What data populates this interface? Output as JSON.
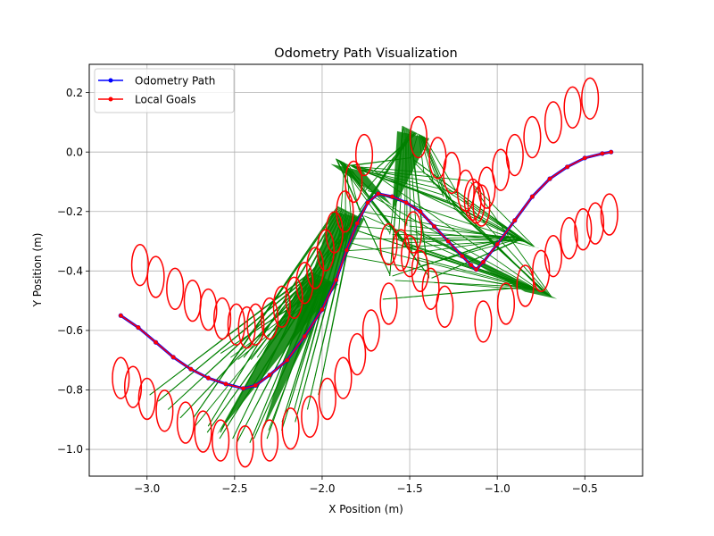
{
  "chart_data": {
    "type": "line",
    "title": "Odometry Path Visualization",
    "xlabel": "X Position (m)",
    "ylabel": "Y Position (m)",
    "xlim": [
      -3.33,
      -0.17
    ],
    "ylim": [
      -1.09,
      0.295
    ],
    "xticks": [
      -3.0,
      -2.5,
      -2.0,
      -1.5,
      -1.0,
      -0.5
    ],
    "xtick_labels": [
      "−3.0",
      "−2.5",
      "−2.0",
      "−1.5",
      "−1.0",
      "−0.5"
    ],
    "yticks": [
      0.2,
      0.0,
      -0.2,
      -0.4,
      -0.6,
      -0.8,
      -1.0
    ],
    "ytick_labels": [
      "0.2",
      "0.0",
      "−0.2",
      "−0.4",
      "−0.6",
      "−0.8",
      "−1.0"
    ],
    "grid": true,
    "legend_position": "upper-left",
    "series": [
      {
        "name": "Odometry Path",
        "color": "#0000ff",
        "points": [
          [
            -3.15,
            -0.55
          ],
          [
            -3.05,
            -0.59
          ],
          [
            -2.95,
            -0.64
          ],
          [
            -2.85,
            -0.69
          ],
          [
            -2.75,
            -0.73
          ],
          [
            -2.65,
            -0.76
          ],
          [
            -2.55,
            -0.78
          ],
          [
            -2.45,
            -0.795
          ],
          [
            -2.38,
            -0.785
          ],
          [
            -2.3,
            -0.75
          ],
          [
            -2.2,
            -0.7
          ],
          [
            -2.1,
            -0.62
          ],
          [
            -2.0,
            -0.53
          ],
          [
            -1.92,
            -0.43
          ],
          [
            -1.86,
            -0.33
          ],
          [
            -1.8,
            -0.24
          ],
          [
            -1.74,
            -0.17
          ],
          [
            -1.68,
            -0.14
          ],
          [
            -1.6,
            -0.15
          ],
          [
            -1.52,
            -0.17
          ],
          [
            -1.44,
            -0.2
          ],
          [
            -1.36,
            -0.25
          ],
          [
            -1.28,
            -0.3
          ],
          [
            -1.2,
            -0.35
          ],
          [
            -1.15,
            -0.38
          ],
          [
            -1.12,
            -0.395
          ],
          [
            -1.08,
            -0.37
          ],
          [
            -1.0,
            -0.31
          ],
          [
            -0.9,
            -0.23
          ],
          [
            -0.8,
            -0.15
          ],
          [
            -0.7,
            -0.09
          ],
          [
            -0.6,
            -0.05
          ],
          [
            -0.5,
            -0.02
          ],
          [
            -0.4,
            -0.005
          ],
          [
            -0.35,
            0.0
          ]
        ]
      },
      {
        "name": "Local Goals",
        "color": "#ff0000",
        "points": [
          [
            -3.15,
            -0.55
          ],
          [
            -3.05,
            -0.59
          ],
          [
            -2.95,
            -0.64
          ],
          [
            -2.85,
            -0.69
          ],
          [
            -2.75,
            -0.73
          ],
          [
            -2.65,
            -0.76
          ],
          [
            -2.55,
            -0.78
          ],
          [
            -2.45,
            -0.795
          ],
          [
            -2.38,
            -0.785
          ],
          [
            -2.3,
            -0.75
          ],
          [
            -2.2,
            -0.7
          ],
          [
            -2.1,
            -0.62
          ],
          [
            -2.0,
            -0.53
          ],
          [
            -1.92,
            -0.43
          ],
          [
            -1.86,
            -0.33
          ],
          [
            -1.8,
            -0.24
          ],
          [
            -1.74,
            -0.17
          ],
          [
            -1.68,
            -0.14
          ],
          [
            -1.6,
            -0.15
          ],
          [
            -1.52,
            -0.17
          ],
          [
            -1.44,
            -0.2
          ],
          [
            -1.36,
            -0.25
          ],
          [
            -1.28,
            -0.3
          ],
          [
            -1.2,
            -0.35
          ],
          [
            -1.15,
            -0.38
          ],
          [
            -1.12,
            -0.395
          ],
          [
            -1.08,
            -0.37
          ],
          [
            -1.0,
            -0.31
          ],
          [
            -0.9,
            -0.23
          ],
          [
            -0.8,
            -0.15
          ],
          [
            -0.7,
            -0.09
          ],
          [
            -0.6,
            -0.05
          ],
          [
            -0.5,
            -0.02
          ],
          [
            -0.4,
            -0.005
          ],
          [
            -0.35,
            0.0
          ]
        ]
      }
    ],
    "ellipses": {
      "color": "#ff0000",
      "center_groups": [
        [
          [
            -3.15,
            -0.76
          ],
          [
            -3.08,
            -0.79
          ],
          [
            -3.0,
            -0.83
          ],
          [
            -2.9,
            -0.87
          ],
          [
            -2.78,
            -0.91
          ],
          [
            -2.68,
            -0.94
          ],
          [
            -2.58,
            -0.97
          ],
          [
            -2.44,
            -0.99
          ],
          [
            -2.3,
            -0.97
          ],
          [
            -2.18,
            -0.93
          ],
          [
            -2.07,
            -0.89
          ],
          [
            -1.97,
            -0.83
          ],
          [
            -1.88,
            -0.76
          ],
          [
            -1.8,
            -0.68
          ],
          [
            -1.72,
            -0.6
          ],
          [
            -1.62,
            -0.51
          ],
          [
            -1.62,
            -0.31
          ],
          [
            -1.55,
            -0.33
          ],
          [
            -1.5,
            -0.35
          ],
          [
            -1.48,
            -0.27
          ],
          [
            -1.44,
            -0.4
          ],
          [
            -1.38,
            -0.46
          ],
          [
            -1.3,
            -0.52
          ],
          [
            -1.08,
            -0.57
          ]
        ],
        [
          [
            -3.04,
            -0.38
          ],
          [
            -2.95,
            -0.42
          ],
          [
            -2.84,
            -0.46
          ],
          [
            -2.74,
            -0.5
          ],
          [
            -2.65,
            -0.53
          ],
          [
            -2.57,
            -0.56
          ],
          [
            -2.49,
            -0.58
          ],
          [
            -2.43,
            -0.59
          ],
          [
            -2.38,
            -0.58
          ],
          [
            -2.3,
            -0.56
          ],
          [
            -2.23,
            -0.52
          ],
          [
            -2.16,
            -0.49
          ],
          [
            -2.1,
            -0.44
          ],
          [
            -2.04,
            -0.39
          ],
          [
            -1.98,
            -0.33
          ],
          [
            -1.93,
            -0.27
          ],
          [
            -1.87,
            -0.2
          ],
          [
            -1.82,
            -0.1
          ],
          [
            -1.76,
            -0.01
          ],
          [
            -1.45,
            0.05
          ],
          [
            -1.34,
            -0.02
          ],
          [
            -1.26,
            -0.07
          ],
          [
            -1.18,
            -0.13
          ],
          [
            -1.14,
            -0.16
          ],
          [
            -1.12,
            -0.17
          ],
          [
            -1.09,
            -0.18
          ]
        ],
        [
          [
            -1.06,
            -0.12
          ],
          [
            -0.98,
            -0.06
          ],
          [
            -0.9,
            -0.01
          ],
          [
            -0.8,
            0.05
          ],
          [
            -0.68,
            0.1
          ],
          [
            -0.57,
            0.15
          ],
          [
            -0.47,
            0.18
          ]
        ],
        [
          [
            -0.95,
            -0.51
          ],
          [
            -0.84,
            -0.45
          ],
          [
            -0.75,
            -0.4
          ],
          [
            -0.68,
            -0.35
          ],
          [
            -0.59,
            -0.29
          ],
          [
            -0.51,
            -0.26
          ],
          [
            -0.44,
            -0.24
          ],
          [
            -0.36,
            -0.21
          ]
        ]
      ],
      "width_data": 0.095,
      "height_data": 0.095
    },
    "green_fans": {
      "color": "#008000",
      "fans": [
        {
          "origin": [
            -2.6,
            -0.95
          ],
          "target": [
            -2.0,
            -0.42
          ]
        },
        {
          "origin": [
            -2.35,
            -0.95
          ],
          "target": [
            -1.85,
            -0.2
          ]
        },
        {
          "origin": [
            -1.6,
            -0.2
          ],
          "target": [
            -1.48,
            0.07
          ]
        },
        {
          "origin": [
            -1.6,
            -0.18
          ],
          "target": [
            -1.86,
            -0.04
          ]
        },
        {
          "origin": [
            -1.55,
            -0.2
          ],
          "target": [
            -0.85,
            -0.3
          ]
        },
        {
          "origin": [
            -1.5,
            -0.25
          ],
          "target": [
            -0.75,
            -0.47
          ]
        }
      ]
    }
  }
}
